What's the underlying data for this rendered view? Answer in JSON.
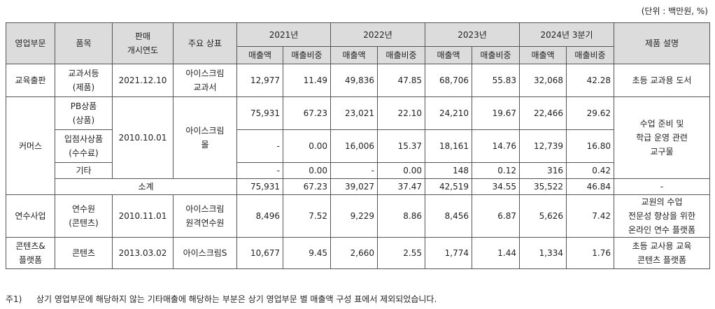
{
  "unit_note": "(단위 : 백만원, %)",
  "headers": {
    "segment": "영업부문",
    "item": "품목",
    "launch": [
      "판매",
      "개시연도"
    ],
    "brand": "주요 상표",
    "years": [
      "2021년",
      "2022년",
      "2023년",
      "2024년 3분기"
    ],
    "sales": "매출액",
    "share": "매출비중",
    "description": "제품 설명"
  },
  "rows": {
    "edu": {
      "segment": "교육출판",
      "item": [
        "교과서등",
        "(제품)"
      ],
      "launch": "2021.12.10",
      "brand": [
        "아이스크림",
        "교과서"
      ],
      "values": [
        "12,977",
        "11.49",
        "49,836",
        "47.85",
        "68,706",
        "55.83",
        "32,068",
        "42.28"
      ],
      "description": [
        "초등 교과용 도서"
      ]
    },
    "commerce": {
      "segment": "커머스",
      "launch": "2010.10.01",
      "brand": [
        "아이스크림",
        "몰"
      ],
      "description": [
        "수업 준비 및",
        "학급 운영 관련",
        "교구물"
      ],
      "items": [
        {
          "item": [
            "PB상품",
            "(상품)"
          ],
          "values": [
            "75,931",
            "67.23",
            "23,021",
            "22.10",
            "24,210",
            "19.67",
            "22,466",
            "29.62"
          ]
        },
        {
          "item": [
            "입점사상품",
            "(수수료)"
          ],
          "values": [
            "-",
            "0.00",
            "16,006",
            "15.37",
            "18,161",
            "14.76",
            "12,739",
            "16.80"
          ]
        },
        {
          "item": [
            "기타"
          ],
          "values": [
            "-",
            "0.00",
            "-",
            "0.00",
            "148",
            "0.12",
            "316",
            "0.42"
          ]
        }
      ],
      "subtotal": {
        "label": "소계",
        "values": [
          "75,931",
          "67.23",
          "39,027",
          "37.47",
          "42,519",
          "34.55",
          "35,522",
          "46.84"
        ],
        "description": "-"
      }
    },
    "training": {
      "segment": "연수사업",
      "item": [
        "연수원",
        "(콘텐츠)"
      ],
      "launch": "2010.11.01",
      "brand": [
        "아이스크림",
        "원격연수원"
      ],
      "values": [
        "8,496",
        "7.52",
        "9,229",
        "8.86",
        "8,456",
        "6.87",
        "5,626",
        "7.42"
      ],
      "description": [
        "교원의 수업",
        "전문성 향상을 위한",
        "온라인 연수 플랫폼"
      ]
    },
    "content": {
      "segment": [
        "콘텐츠&",
        "플랫폼"
      ],
      "item": [
        "콘텐츠"
      ],
      "launch": "2013.03.02",
      "brand": [
        "아이스크림S"
      ],
      "values": [
        "10,677",
        "9.45",
        "2,660",
        "2.55",
        "1,774",
        "1.44",
        "1,334",
        "1.76"
      ],
      "description": [
        "초등 교사용 교육",
        "콘텐츠 플랫폼"
      ]
    }
  },
  "footnote": {
    "number": "주1)",
    "text": "상기 영업부문에 해당하지 않는 기타매출에 해당하는 부분은 상기 영업부문 별 매출액 구성 표에서 제외되었습니다."
  }
}
